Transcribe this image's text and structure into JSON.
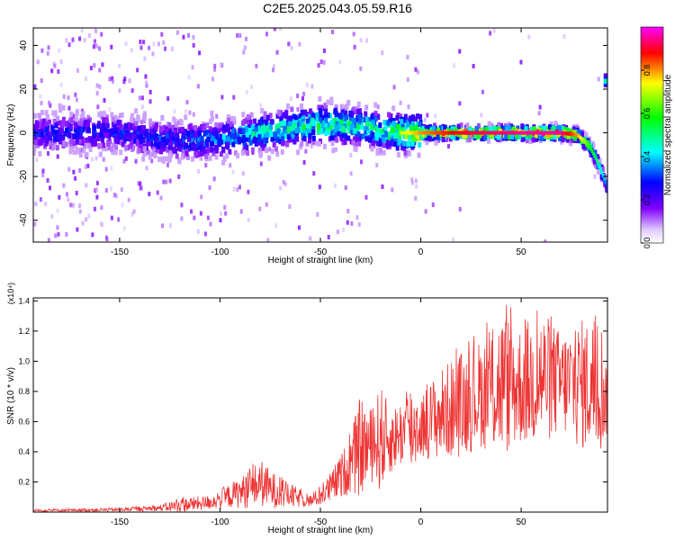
{
  "figure": {
    "title": "C2E5.2025.043.05.59.R16"
  },
  "chart_data": [
    {
      "type": "heatmap",
      "title": "C2E5.2025.043.05.59.R16",
      "xlabel": "Height of straight line (km)",
      "ylabel": "Frequency (Hz)",
      "xlim": [
        -193,
        93
      ],
      "ylim": [
        -50,
        48
      ],
      "x_ticks": [
        -150,
        -100,
        -50,
        0,
        50
      ],
      "x_tick_labels": [
        "-150",
        "-100",
        "-50",
        "0",
        "50"
      ],
      "y_ticks": [
        -40,
        -20,
        0,
        20,
        40
      ],
      "y_tick_labels": [
        "-40",
        "-20",
        "0",
        "20",
        "40"
      ],
      "colorbar": {
        "label": "Normalized spectral amplitude",
        "range": [
          0,
          1
        ],
        "ticks": [
          0.0,
          0.2,
          0.4,
          0.6,
          0.8
        ],
        "tick_labels": [
          "0.0",
          "0.2",
          "0.4",
          "0.6",
          "0.8"
        ],
        "colormap": [
          "#ffffff",
          "#e0ccff",
          "#8000ff",
          "#0000ff",
          "#00ffff",
          "#00ff00",
          "#ffff00",
          "#ff0000",
          "#ff00ff"
        ]
      },
      "ridge": {
        "description_x": [
          -193,
          -150,
          -120,
          -100,
          -80,
          -60,
          -50,
          -30,
          -20,
          -10,
          0,
          20,
          50,
          70,
          78,
          84,
          88,
          91,
          93
        ],
        "frequency_hz": [
          0,
          0,
          -4,
          -3,
          0,
          3,
          4,
          3,
          1,
          0,
          0,
          0,
          0,
          0,
          -1,
          -6,
          -13,
          -20,
          -25
        ],
        "peak_amplitude": [
          0.3,
          0.3,
          0.35,
          0.4,
          0.5,
          0.55,
          0.6,
          0.55,
          0.55,
          0.7,
          0.8,
          0.9,
          0.95,
          0.95,
          0.8,
          0.6,
          0.5,
          0.4,
          0.3
        ]
      },
      "side_blob": {
        "x": 92,
        "frequency_hz": 24,
        "amplitude": 0.5
      }
    },
    {
      "type": "line",
      "title": "",
      "xlabel": "Height of straight line (km)",
      "ylabel": "SNR (10 * v/v)",
      "y_multiplier_label": "(x10⁴)",
      "xlim": [
        -193,
        93
      ],
      "ylim": [
        0,
        1.42
      ],
      "x_ticks": [
        -150,
        -100,
        -50,
        0,
        50
      ],
      "x_tick_labels": [
        "-150",
        "-100",
        "-50",
        "0",
        "50"
      ],
      "y_ticks": [
        0.2,
        0.4,
        0.6,
        0.8,
        1.0,
        1.2,
        1.4
      ],
      "y_tick_labels": [
        "0.2",
        "0.4",
        "0.6",
        "0.8",
        "1.0",
        "1.2",
        "1.4"
      ],
      "series": [
        {
          "color": "#ee3333",
          "envelope_x": [
            -193,
            -150,
            -130,
            -120,
            -105,
            -95,
            -85,
            -80,
            -75,
            -65,
            -55,
            -50,
            -45,
            -40,
            -35,
            -30,
            -25,
            -20,
            -15,
            -10,
            -5,
            0,
            10,
            20,
            30,
            40,
            50,
            60,
            70,
            80,
            90,
            93
          ],
          "envelope_max": [
            0.02,
            0.03,
            0.05,
            0.1,
            0.12,
            0.2,
            0.3,
            0.38,
            0.3,
            0.2,
            0.12,
            0.18,
            0.28,
            0.4,
            0.55,
            0.82,
            0.72,
            0.9,
            0.72,
            0.78,
            0.92,
            0.82,
            1.0,
            1.12,
            1.2,
            1.42,
            1.3,
            1.42,
            1.25,
            1.35,
            1.36,
            0.95
          ],
          "envelope_mean": [
            0.01,
            0.015,
            0.025,
            0.04,
            0.06,
            0.1,
            0.14,
            0.18,
            0.14,
            0.1,
            0.07,
            0.1,
            0.15,
            0.22,
            0.3,
            0.4,
            0.42,
            0.45,
            0.45,
            0.5,
            0.52,
            0.55,
            0.62,
            0.68,
            0.75,
            0.8,
            0.8,
            0.85,
            0.82,
            0.8,
            0.8,
            0.7
          ]
        }
      ]
    }
  ]
}
